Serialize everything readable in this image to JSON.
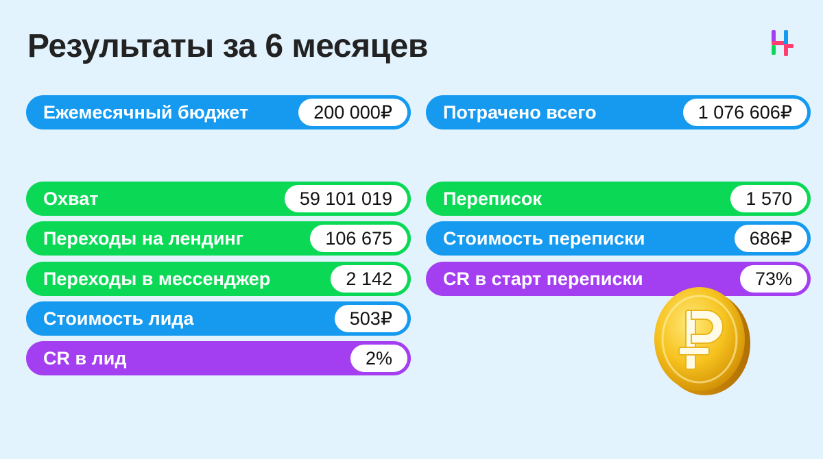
{
  "page": {
    "title": "Результаты за 6 месяцев"
  },
  "metrics_top": [
    {
      "label": "Ежемесячный бюджет",
      "value": "200 000₽"
    },
    {
      "label": "Потрачено всего",
      "value": "1 076 606₽"
    }
  ],
  "metrics_left": [
    {
      "label": "Охват",
      "value": "59 101 019"
    },
    {
      "label": "Переходы на лендинг",
      "value": "106 675"
    },
    {
      "label": "Переходы в мессенджер",
      "value": "2 142"
    },
    {
      "label": "Стоимость лида",
      "value": "503₽"
    },
    {
      "label": "CR в лид",
      "value": "2%"
    }
  ],
  "metrics_right": [
    {
      "label": "Переписок",
      "value": "1 570"
    },
    {
      "label": "Стоимость переписки",
      "value": "686₽"
    },
    {
      "label": "CR в старт переписки",
      "value": "73%"
    }
  ],
  "colors": {
    "blue": "#159af0",
    "green": "#0bd956",
    "purple": "#a43ef1",
    "background": "#e3f3fd"
  },
  "icons": {
    "logo": "logo-icon",
    "coin": "ruble-coin-icon"
  }
}
